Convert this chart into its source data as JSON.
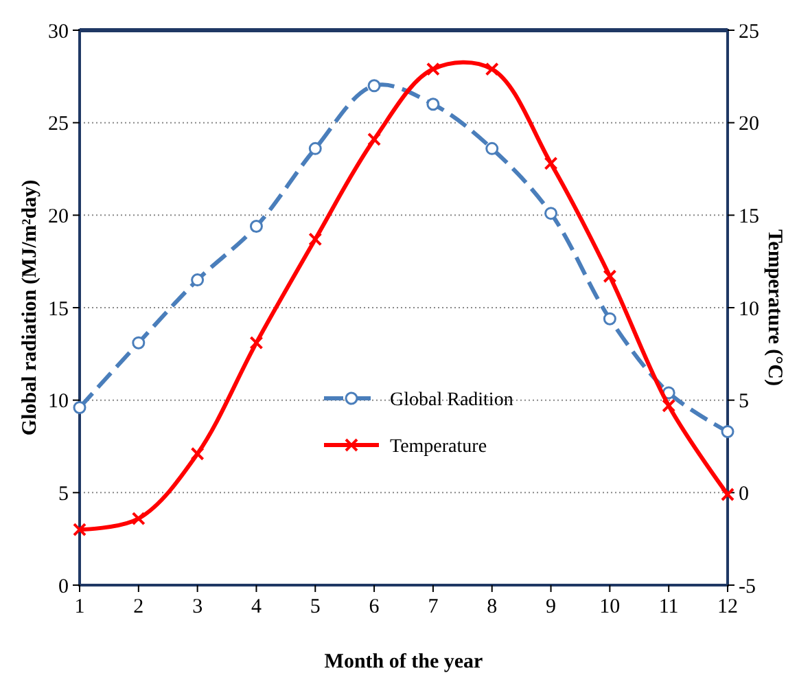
{
  "chart_data": {
    "type": "line",
    "xlabel": "Month of the year",
    "ylabel": "Global radiation  (MJ/m²day)",
    "y2label": "Temperature (°C)",
    "x": [
      1,
      2,
      3,
      4,
      5,
      6,
      7,
      8,
      9,
      10,
      11,
      12
    ],
    "xlim": [
      1,
      12
    ],
    "xticks": [
      1,
      2,
      3,
      4,
      5,
      6,
      7,
      8,
      9,
      10,
      11,
      12
    ],
    "ylim": [
      0,
      30
    ],
    "yticks": [
      0,
      5,
      10,
      15,
      20,
      25,
      30
    ],
    "y2lim": [
      -5,
      25
    ],
    "y2ticks": [
      -5,
      0,
      5,
      10,
      15,
      20,
      25
    ],
    "grid": "y",
    "legend": "center",
    "series": [
      {
        "name": "Global Radition",
        "color": "#4a7ebb",
        "marker": "circle",
        "line_style": "dashed",
        "values": [
          9.6,
          13.1,
          16.5,
          19.4,
          23.6,
          27.0,
          26.0,
          23.6,
          20.1,
          14.4,
          10.4,
          8.3
        ]
      },
      {
        "name": "Temperature",
        "color": "#ff0000",
        "marker": "cross",
        "line_style": "solid",
        "axis": "y2",
        "values": [
          -2.0,
          -1.4,
          2.1,
          8.1,
          13.7,
          19.1,
          22.9,
          22.9,
          17.8,
          11.7,
          4.7,
          -0.1
        ]
      }
    ]
  }
}
